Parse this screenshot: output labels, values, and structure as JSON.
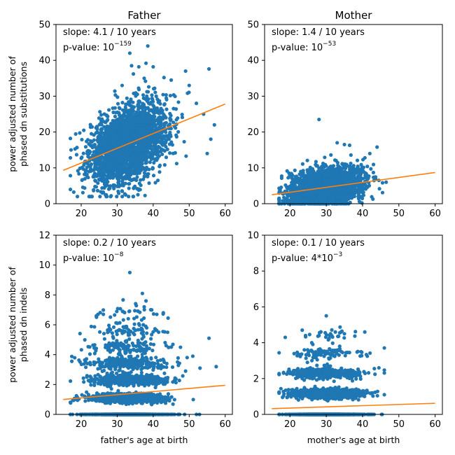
{
  "chart_data": [
    {
      "id": "father-substitutions",
      "type": "scatter",
      "title": "Father",
      "xlabel": "",
      "ylabel_lines": [
        "power adjusted number of",
        "phased dn substitutions"
      ],
      "xlim": [
        13,
        62
      ],
      "ylim": [
        0,
        50
      ],
      "xticks": [
        20,
        30,
        40,
        50,
        60
      ],
      "yticks": [
        0,
        10,
        20,
        30,
        40,
        50
      ],
      "slope_text": "slope: 4.1 / 10 years",
      "pvalue_prefix": "p-value: ",
      "pvalue_base": "10",
      "pvalue_exp": "−159",
      "fit": {
        "x": [
          15,
          60
        ],
        "y": [
          9.3,
          27.8
        ]
      },
      "cloud": {
        "count": 2400,
        "age_mean": 33,
        "age_sd": 5.4,
        "age_min": 17,
        "age_max": 57,
        "y_sd": 5.2,
        "y_min": 2,
        "y_max": 43,
        "discrete": false
      },
      "outliers": [
        [
          34,
          38.5
        ],
        [
          36,
          38.2
        ],
        [
          38,
          39.2
        ],
        [
          40,
          38.2
        ],
        [
          55.5,
          37.6
        ],
        [
          34.5,
          36.2
        ],
        [
          37.5,
          35
        ],
        [
          43,
          35.2
        ],
        [
          49,
          37
        ],
        [
          45,
          34.5
        ],
        [
          52,
          28
        ],
        [
          54,
          25
        ],
        [
          57,
          22
        ],
        [
          56,
          18
        ],
        [
          55,
          14
        ],
        [
          50,
          33
        ],
        [
          33.5,
          42
        ],
        [
          38.5,
          44
        ]
      ]
    },
    {
      "id": "mother-substitutions",
      "type": "scatter",
      "title": "Mother",
      "xlabel": "",
      "ylabel_lines": [],
      "xlim": [
        13,
        62
      ],
      "ylim": [
        0,
        50
      ],
      "xticks": [
        20,
        30,
        40,
        50,
        60
      ],
      "yticks": [
        0,
        10,
        20,
        30,
        40,
        50
      ],
      "slope_text": "slope: 1.4 / 10 years",
      "pvalue_prefix": "p-value: ",
      "pvalue_base": "10",
      "pvalue_exp": "−53",
      "fit": {
        "x": [
          15,
          60
        ],
        "y": [
          2.5,
          8.7
        ]
      },
      "cloud": {
        "count": 2200,
        "age_mean": 30,
        "age_sd": 5.0,
        "age_min": 17,
        "age_max": 45.5,
        "y_sd": 2.6,
        "y_min": 0,
        "y_max": 17,
        "discrete": false
      },
      "outliers": [
        [
          28,
          23.5
        ],
        [
          44,
          15.8
        ],
        [
          46.5,
          6
        ],
        [
          44.5,
          6.5
        ],
        [
          17,
          1.5
        ],
        [
          42,
          14
        ],
        [
          35,
          16.5
        ],
        [
          33,
          17
        ]
      ]
    },
    {
      "id": "father-indels",
      "type": "scatter",
      "title": "",
      "xlabel": "father's age at birth",
      "ylabel_lines": [
        "power adjusted number of",
        "phased dn indels"
      ],
      "xlim": [
        13,
        62
      ],
      "ylim": [
        0,
        12
      ],
      "xticks": [
        20,
        30,
        40,
        50,
        60
      ],
      "yticks": [
        0,
        2,
        4,
        6,
        8,
        10,
        12
      ],
      "slope_text": "slope: 0.2 / 10 years",
      "pvalue_prefix": "p-value: ",
      "pvalue_base": "10",
      "pvalue_exp": "−8",
      "fit": {
        "x": [
          15,
          60
        ],
        "y": [
          1.0,
          1.95
        ]
      },
      "cloud": {
        "count": 2600,
        "age_mean": 33,
        "age_sd": 5.4,
        "age_min": 17,
        "age_max": 58,
        "discrete": true,
        "levels": [
          0,
          1.1,
          2.3,
          3.4,
          4.5,
          5.6,
          6.8
        ],
        "level_weights": [
          0.3,
          0.33,
          0.18,
          0.1,
          0.05,
          0.025,
          0.015
        ],
        "level_jitter": 0.12
      },
      "outliers": [
        [
          33.5,
          9.5
        ],
        [
          37,
          8.1
        ],
        [
          37.5,
          7.2
        ],
        [
          41,
          6.7
        ],
        [
          55.5,
          5.1
        ],
        [
          57.5,
          3.2
        ],
        [
          53,
          3.1
        ],
        [
          51,
          3.9
        ],
        [
          49,
          2.9
        ],
        [
          38,
          7.6
        ],
        [
          31.5,
          6.9
        ],
        [
          44,
          5.5
        ]
      ]
    },
    {
      "id": "mother-indels",
      "type": "scatter",
      "title": "",
      "xlabel": "mother's age at birth",
      "ylabel_lines": [],
      "xlim": [
        13,
        62
      ],
      "ylim": [
        0,
        10
      ],
      "xticks": [
        20,
        30,
        40,
        50,
        60
      ],
      "yticks": [
        0,
        2,
        4,
        6,
        8,
        10
      ],
      "slope_text": "slope: 0.1 / 10 years",
      "pvalue_prefix": "p-value: ",
      "pvalue_base": "4*10",
      "pvalue_exp": "−3",
      "fit": {
        "x": [
          15,
          60
        ],
        "y": [
          0.32,
          0.62
        ]
      },
      "cloud": {
        "count": 2300,
        "age_mean": 30,
        "age_sd": 5.0,
        "age_min": 17,
        "age_max": 46,
        "discrete": true,
        "levels": [
          0,
          1.15,
          2.3,
          3.4,
          4.5
        ],
        "level_weights": [
          0.4,
          0.38,
          0.16,
          0.05,
          0.01
        ],
        "level_jitter": 0.1
      },
      "outliers": [
        [
          30,
          5.5
        ],
        [
          32.5,
          4.6
        ],
        [
          35,
          4.5
        ],
        [
          28,
          4.4
        ],
        [
          44.5,
          2.6
        ],
        [
          46,
          1.1
        ],
        [
          17,
          1.2
        ],
        [
          26,
          4.0
        ]
      ]
    }
  ],
  "colors": {
    "points": "#1f77b4",
    "fit": "#ff7f0e",
    "axes": "#000000"
  }
}
